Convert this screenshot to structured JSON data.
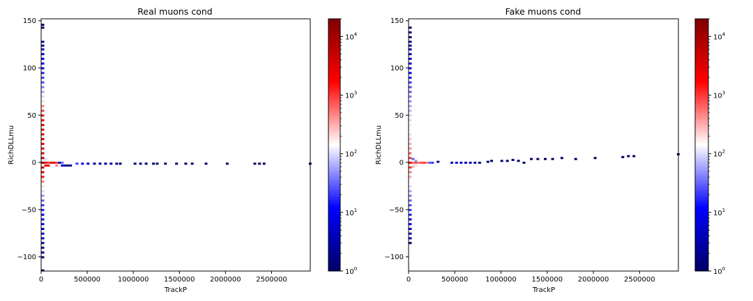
{
  "chart_data": [
    {
      "type": "heatmap",
      "title": "Real muons cond",
      "xlabel": "TrackP",
      "ylabel": "RichDLLmu",
      "xlim": [
        0,
        2920000
      ],
      "ylim": [
        -115,
        152
      ],
      "xticks": [
        0,
        500000,
        1000000,
        1500000,
        2000000,
        2500000
      ],
      "yticks": [
        -100,
        -50,
        0,
        50,
        100,
        150
      ],
      "colorbar": {
        "scale": "log",
        "min": 1,
        "max": 20000,
        "ticks": [
          "10^0",
          "10^1",
          "10^2",
          "10^3",
          "10^4"
        ],
        "colors": [
          "#000066",
          "#0000ff",
          "#ffffff",
          "#ff0000",
          "#800000"
        ]
      },
      "bins": [
        {
          "x": 0,
          "y": 146,
          "count": 1
        },
        {
          "x": 0,
          "y": 143,
          "count": 1
        },
        {
          "x": 0,
          "y": 128,
          "count": 2
        },
        {
          "x": 0,
          "y": 124,
          "count": 2
        },
        {
          "x": 0,
          "y": 120,
          "count": 4
        },
        {
          "x": 0,
          "y": 115,
          "count": 5
        },
        {
          "x": 0,
          "y": 110,
          "count": 7
        },
        {
          "x": 0,
          "y": 105,
          "count": 10
        },
        {
          "x": 0,
          "y": 100,
          "count": 12
        },
        {
          "x": 0,
          "y": 95,
          "count": 15
        },
        {
          "x": 0,
          "y": 90,
          "count": 20
        },
        {
          "x": 0,
          "y": 85,
          "count": 25
        },
        {
          "x": 0,
          "y": 80,
          "count": 40
        },
        {
          "x": 0,
          "y": 75,
          "count": 60
        },
        {
          "x": 0,
          "y": 70,
          "count": 100
        },
        {
          "x": 0,
          "y": 65,
          "count": 200
        },
        {
          "x": 0,
          "y": 60,
          "count": 500
        },
        {
          "x": 0,
          "y": 55,
          "count": 1000
        },
        {
          "x": 0,
          "y": 50,
          "count": 1500
        },
        {
          "x": 0,
          "y": 45,
          "count": 2000
        },
        {
          "x": 0,
          "y": 40,
          "count": 3000
        },
        {
          "x": 0,
          "y": 35,
          "count": 3000
        },
        {
          "x": 0,
          "y": 30,
          "count": 3000
        },
        {
          "x": 0,
          "y": 25,
          "count": 3000
        },
        {
          "x": 0,
          "y": 20,
          "count": 3000
        },
        {
          "x": 0,
          "y": 15,
          "count": 3000
        },
        {
          "x": 0,
          "y": 10,
          "count": 4000
        },
        {
          "x": 0,
          "y": 5,
          "count": 6000
        },
        {
          "x": 0,
          "y": 0,
          "count": 15000
        },
        {
          "x": 0,
          "y": -5,
          "count": 6000
        },
        {
          "x": 0,
          "y": -10,
          "count": 3000
        },
        {
          "x": 0,
          "y": -15,
          "count": 1500
        },
        {
          "x": 0,
          "y": -20,
          "count": 500
        },
        {
          "x": 0,
          "y": -25,
          "count": 200
        },
        {
          "x": 0,
          "y": -30,
          "count": 100
        },
        {
          "x": 0,
          "y": -35,
          "count": 50
        },
        {
          "x": 0,
          "y": -40,
          "count": 30
        },
        {
          "x": 0,
          "y": -45,
          "count": 20
        },
        {
          "x": 0,
          "y": -50,
          "count": 15
        },
        {
          "x": 0,
          "y": -55,
          "count": 12
        },
        {
          "x": 0,
          "y": -60,
          "count": 10
        },
        {
          "x": 0,
          "y": -65,
          "count": 8
        },
        {
          "x": 0,
          "y": -70,
          "count": 6
        },
        {
          "x": 0,
          "y": -75,
          "count": 5
        },
        {
          "x": 0,
          "y": -80,
          "count": 4
        },
        {
          "x": 0,
          "y": -85,
          "count": 3
        },
        {
          "x": 0,
          "y": -90,
          "count": 2
        },
        {
          "x": 0,
          "y": -95,
          "count": 2
        },
        {
          "x": 0,
          "y": -100,
          "count": 1
        },
        {
          "x": 0,
          "y": -114,
          "count": 1
        },
        {
          "x": 30000,
          "y": 4,
          "count": 100
        },
        {
          "x": 30000,
          "y": 0,
          "count": 2000
        },
        {
          "x": 30000,
          "y": -3,
          "count": 2000
        },
        {
          "x": 60000,
          "y": 0,
          "count": 1000
        },
        {
          "x": 60000,
          "y": -3,
          "count": 3000
        },
        {
          "x": 90000,
          "y": 0,
          "count": 3000
        },
        {
          "x": 120000,
          "y": 0,
          "count": 3000
        },
        {
          "x": 150000,
          "y": 0,
          "count": 1000
        },
        {
          "x": 150000,
          "y": -3,
          "count": 500
        },
        {
          "x": 180000,
          "y": 0,
          "count": 2
        },
        {
          "x": 210000,
          "y": 0,
          "count": 30
        },
        {
          "x": 210000,
          "y": -3,
          "count": 3
        },
        {
          "x": 240000,
          "y": -3,
          "count": 2
        },
        {
          "x": 270000,
          "y": -3,
          "count": 2
        },
        {
          "x": 300000,
          "y": -3,
          "count": 2
        },
        {
          "x": 370000,
          "y": -1,
          "count": 20
        },
        {
          "x": 430000,
          "y": -1,
          "count": 10
        },
        {
          "x": 490000,
          "y": -1,
          "count": 5
        },
        {
          "x": 560000,
          "y": -1,
          "count": 3
        },
        {
          "x": 620000,
          "y": -1,
          "count": 3
        },
        {
          "x": 680000,
          "y": -1,
          "count": 2
        },
        {
          "x": 740000,
          "y": -1,
          "count": 2
        },
        {
          "x": 800000,
          "y": -1,
          "count": 2
        },
        {
          "x": 840000,
          "y": -1,
          "count": 1
        },
        {
          "x": 1000000,
          "y": -1,
          "count": 1
        },
        {
          "x": 1060000,
          "y": -1,
          "count": 2
        },
        {
          "x": 1120000,
          "y": -1,
          "count": 1
        },
        {
          "x": 1200000,
          "y": -1,
          "count": 1
        },
        {
          "x": 1240000,
          "y": -1,
          "count": 1
        },
        {
          "x": 1330000,
          "y": -1,
          "count": 1
        },
        {
          "x": 1450000,
          "y": -1,
          "count": 1
        },
        {
          "x": 1550000,
          "y": -1,
          "count": 1
        },
        {
          "x": 1620000,
          "y": -1,
          "count": 1
        },
        {
          "x": 1770000,
          "y": -1,
          "count": 1
        },
        {
          "x": 2000000,
          "y": -1,
          "count": 1
        },
        {
          "x": 2300000,
          "y": -1,
          "count": 1
        },
        {
          "x": 2350000,
          "y": -1,
          "count": 1
        },
        {
          "x": 2400000,
          "y": -1,
          "count": 1
        },
        {
          "x": 2900000,
          "y": -1,
          "count": 1
        }
      ]
    },
    {
      "type": "heatmap",
      "title": "Fake muons cond",
      "xlabel": "TrackP",
      "ylabel": "RichDLLmu",
      "xlim": [
        0,
        2920000
      ],
      "ylim": [
        -115,
        152
      ],
      "xticks": [
        0,
        500000,
        1000000,
        1500000,
        2000000,
        2500000
      ],
      "yticks": [
        -100,
        -50,
        0,
        50,
        100,
        150
      ],
      "colorbar": {
        "scale": "log",
        "min": 1,
        "max": 20000,
        "ticks": [
          "10^0",
          "10^1",
          "10^2",
          "10^3",
          "10^4"
        ],
        "colors": [
          "#000066",
          "#0000ff",
          "#ffffff",
          "#ff0000",
          "#800000"
        ]
      },
      "bins": [
        {
          "x": 0,
          "y": 143,
          "count": 1
        },
        {
          "x": 0,
          "y": 138,
          "count": 2
        },
        {
          "x": 0,
          "y": 133,
          "count": 1
        },
        {
          "x": 0,
          "y": 128,
          "count": 2
        },
        {
          "x": 0,
          "y": 124,
          "count": 3
        },
        {
          "x": 0,
          "y": 120,
          "count": 3
        },
        {
          "x": 0,
          "y": 115,
          "count": 4
        },
        {
          "x": 0,
          "y": 110,
          "count": 6
        },
        {
          "x": 0,
          "y": 105,
          "count": 8
        },
        {
          "x": 0,
          "y": 100,
          "count": 10
        },
        {
          "x": 0,
          "y": 95,
          "count": 12
        },
        {
          "x": 0,
          "y": 90,
          "count": 15
        },
        {
          "x": 0,
          "y": 85,
          "count": 20
        },
        {
          "x": 0,
          "y": 80,
          "count": 25
        },
        {
          "x": 0,
          "y": 75,
          "count": 30
        },
        {
          "x": 0,
          "y": 70,
          "count": 40
        },
        {
          "x": 0,
          "y": 65,
          "count": 50
        },
        {
          "x": 0,
          "y": 60,
          "count": 60
        },
        {
          "x": 0,
          "y": 55,
          "count": 70
        },
        {
          "x": 0,
          "y": 50,
          "count": 90
        },
        {
          "x": 0,
          "y": 45,
          "count": 100
        },
        {
          "x": 0,
          "y": 40,
          "count": 120
        },
        {
          "x": 0,
          "y": 35,
          "count": 150
        },
        {
          "x": 0,
          "y": 30,
          "count": 200
        },
        {
          "x": 0,
          "y": 25,
          "count": 250
        },
        {
          "x": 0,
          "y": 20,
          "count": 300
        },
        {
          "x": 0,
          "y": 15,
          "count": 400
        },
        {
          "x": 0,
          "y": 10,
          "count": 600
        },
        {
          "x": 0,
          "y": 5,
          "count": 1000
        },
        {
          "x": 0,
          "y": 0,
          "count": 2000
        },
        {
          "x": 0,
          "y": -5,
          "count": 1000
        },
        {
          "x": 0,
          "y": -10,
          "count": 500
        },
        {
          "x": 0,
          "y": -15,
          "count": 300
        },
        {
          "x": 0,
          "y": -20,
          "count": 150
        },
        {
          "x": 0,
          "y": -25,
          "count": 100
        },
        {
          "x": 0,
          "y": -30,
          "count": 60
        },
        {
          "x": 0,
          "y": -35,
          "count": 40
        },
        {
          "x": 0,
          "y": -40,
          "count": 30
        },
        {
          "x": 0,
          "y": -45,
          "count": 25
        },
        {
          "x": 0,
          "y": -50,
          "count": 20
        },
        {
          "x": 0,
          "y": -55,
          "count": 15
        },
        {
          "x": 0,
          "y": -60,
          "count": 12
        },
        {
          "x": 0,
          "y": -65,
          "count": 10
        },
        {
          "x": 0,
          "y": -70,
          "count": 7
        },
        {
          "x": 0,
          "y": -75,
          "count": 5
        },
        {
          "x": 0,
          "y": -80,
          "count": 3
        },
        {
          "x": 0,
          "y": -85,
          "count": 1
        },
        {
          "x": 30000,
          "y": 4,
          "count": 30
        },
        {
          "x": 30000,
          "y": 0,
          "count": 600
        },
        {
          "x": 30000,
          "y": -4,
          "count": 300
        },
        {
          "x": 60000,
          "y": 2,
          "count": 50
        },
        {
          "x": 60000,
          "y": 0,
          "count": 800
        },
        {
          "x": 60000,
          "y": -3,
          "count": 200
        },
        {
          "x": 90000,
          "y": 0,
          "count": 600
        },
        {
          "x": 120000,
          "y": 0,
          "count": 800
        },
        {
          "x": 150000,
          "y": 0,
          "count": 1000
        },
        {
          "x": 180000,
          "y": 0,
          "count": 500
        },
        {
          "x": 210000,
          "y": 0,
          "count": 30
        },
        {
          "x": 240000,
          "y": 0,
          "count": 20
        },
        {
          "x": 300000,
          "y": 1,
          "count": 2
        },
        {
          "x": 450000,
          "y": 0,
          "count": 5
        },
        {
          "x": 500000,
          "y": 0,
          "count": 8
        },
        {
          "x": 550000,
          "y": 0,
          "count": 6
        },
        {
          "x": 600000,
          "y": 0,
          "count": 5
        },
        {
          "x": 650000,
          "y": 0,
          "count": 4
        },
        {
          "x": 700000,
          "y": 0,
          "count": 3
        },
        {
          "x": 750000,
          "y": 0,
          "count": 2
        },
        {
          "x": 840000,
          "y": 1,
          "count": 1
        },
        {
          "x": 880000,
          "y": 2,
          "count": 1
        },
        {
          "x": 990000,
          "y": 2,
          "count": 1
        },
        {
          "x": 1050000,
          "y": 2,
          "count": 1
        },
        {
          "x": 1110000,
          "y": 3,
          "count": 1
        },
        {
          "x": 1170000,
          "y": 2,
          "count": 1
        },
        {
          "x": 1230000,
          "y": 0,
          "count": 1
        },
        {
          "x": 1310000,
          "y": 4,
          "count": 1
        },
        {
          "x": 1380000,
          "y": 4,
          "count": 1
        },
        {
          "x": 1460000,
          "y": 4,
          "count": 1
        },
        {
          "x": 1540000,
          "y": 4,
          "count": 1
        },
        {
          "x": 1640000,
          "y": 5,
          "count": 1
        },
        {
          "x": 1790000,
          "y": 4,
          "count": 1
        },
        {
          "x": 2000000,
          "y": 5,
          "count": 1
        },
        {
          "x": 2300000,
          "y": 6,
          "count": 1
        },
        {
          "x": 2360000,
          "y": 7,
          "count": 1
        },
        {
          "x": 2420000,
          "y": 7,
          "count": 1
        },
        {
          "x": 2900000,
          "y": 9,
          "count": 1
        }
      ]
    }
  ]
}
